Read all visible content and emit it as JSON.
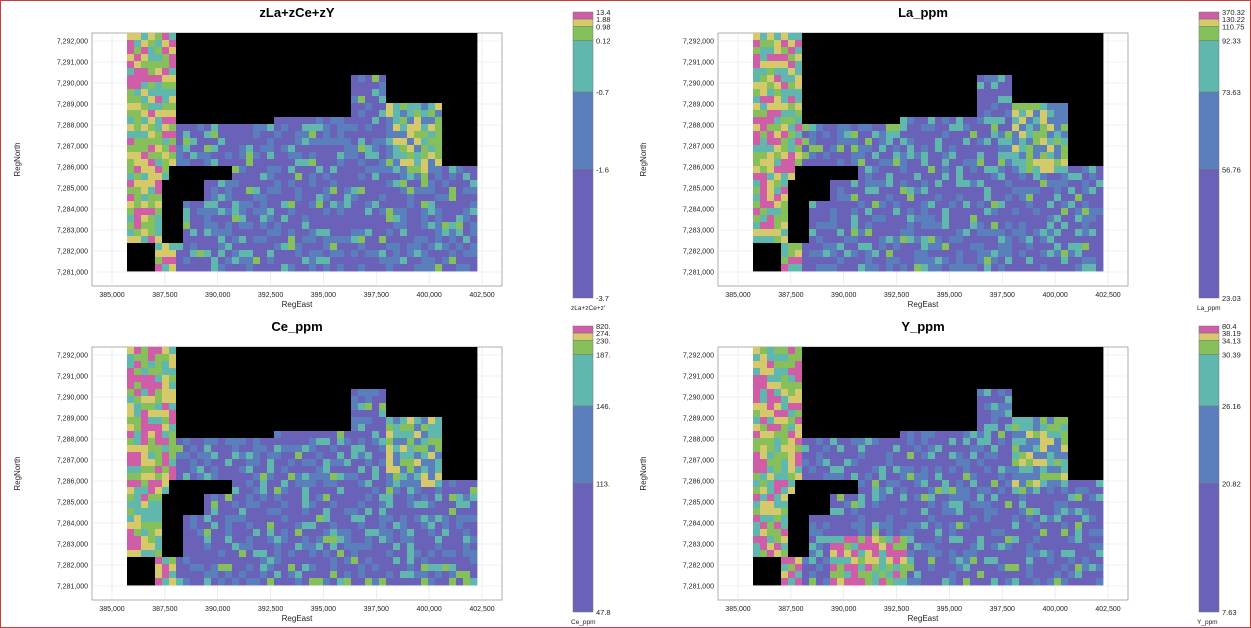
{
  "colors": {
    "frame": "#d23a3a",
    "mask": "#000000",
    "plot_bg": "#ffffff",
    "legend_classes": [
      "#6a62b8",
      "#5a7fbc",
      "#5fb7ad",
      "#86c05a",
      "#d6c96a",
      "#cf5da8"
    ]
  },
  "chart_data": [
    {
      "type": "heatmap",
      "title": "zLa+zCe+zY",
      "xlabel": "RegEast",
      "ylabel": "RegNorth",
      "xticks": [
        "385,000",
        "387,500",
        "390,000",
        "392,500",
        "395,000",
        "397,500",
        "400,000",
        "402,500"
      ],
      "yticks": [
        "7,292,000",
        "7,291,000",
        "7,290,000",
        "7,289,000",
        "7,288,000",
        "7,287,000",
        "7,286,000",
        "7,285,000",
        "7,284,000",
        "7,283,000",
        "7,282,000",
        "7,281,000"
      ],
      "xlim": [
        383000,
        404000
      ],
      "ylim": [
        7280500,
        7292300
      ],
      "legend_title": "zLa+zCe+z'",
      "legend_breaks": [
        "13.4",
        "1.88",
        "0.98",
        "0.12",
        "-0.7",
        "-1.6",
        "-3.7"
      ],
      "legend_class_labels": [
        "",
        "",
        "",
        "",
        "",
        ""
      ],
      "grid": true
    },
    {
      "type": "heatmap",
      "title": "La_ppm",
      "xlabel": "RegEast",
      "ylabel": "RegNorth",
      "xticks": [
        "385,000",
        "387,500",
        "390,000",
        "392,500",
        "395,000",
        "397,500",
        "400,000",
        "402,500"
      ],
      "yticks": [
        "7,292,000",
        "7,291,000",
        "7,290,000",
        "7,289,000",
        "7,288,000",
        "7,287,000",
        "7,286,000",
        "7,285,000",
        "7,284,000",
        "7,283,000",
        "7,282,000",
        "7,281,000"
      ],
      "xlim": [
        383000,
        404000
      ],
      "ylim": [
        7280500,
        7292300
      ],
      "legend_title": "La_ppm",
      "legend_breaks": [
        "370.32",
        "130.22",
        "110.75",
        "92.33",
        "73.63",
        "56.76",
        "23.03"
      ],
      "legend_class_labels": [
        "",
        "",
        "",
        "",
        "",
        ""
      ],
      "grid": true
    },
    {
      "type": "heatmap",
      "title": "Ce_ppm",
      "xlabel": "RegEast",
      "ylabel": "RegNorth",
      "xticks": [
        "385,000",
        "387,500",
        "390,000",
        "392,500",
        "395,000",
        "397,500",
        "400,000",
        "402,500"
      ],
      "yticks": [
        "7,292,000",
        "7,291,000",
        "7,290,000",
        "7,289,000",
        "7,288,000",
        "7,287,000",
        "7,286,000",
        "7,285,000",
        "7,284,000",
        "7,283,000",
        "7,282,000",
        "7,281,000"
      ],
      "xlim": [
        383000,
        404000
      ],
      "ylim": [
        7280500,
        7292300
      ],
      "legend_title": "Ce_ppm",
      "legend_breaks": [
        "820.",
        "274.",
        "230.",
        "187.",
        "146.",
        "113.",
        "47.8"
      ],
      "legend_class_labels": [
        "",
        "",
        "",
        "",
        "",
        ""
      ],
      "grid": true
    },
    {
      "type": "heatmap",
      "title": "Y_ppm",
      "xlabel": "RegEast",
      "ylabel": "RegNorth",
      "xticks": [
        "385,000",
        "387,500",
        "390,000",
        "392,500",
        "395,000",
        "397,500",
        "400,000",
        "402,500"
      ],
      "yticks": [
        "7,292,000",
        "7,291,000",
        "7,290,000",
        "7,289,000",
        "7,288,000",
        "7,287,000",
        "7,286,000",
        "7,285,000",
        "7,284,000",
        "7,283,000",
        "7,282,000",
        "7,281,000"
      ],
      "xlim": [
        383000,
        404000
      ],
      "ylim": [
        7280500,
        7292300
      ],
      "legend_title": "Y_ppm",
      "legend_breaks": [
        "80.4",
        "38.19",
        "34.13",
        "30.39",
        "26.16",
        "20.82",
        "7.63"
      ],
      "legend_class_labels": [
        "",
        "",
        "",
        "",
        "",
        ""
      ],
      "grid": true
    }
  ]
}
